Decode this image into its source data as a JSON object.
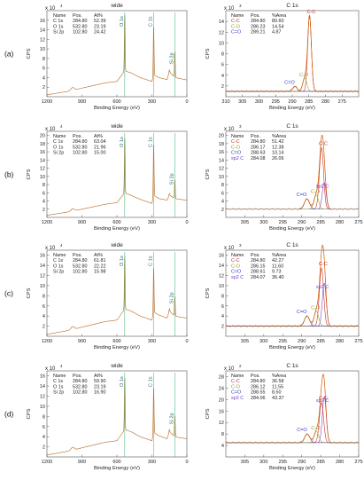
{
  "chart_data": [
    {
      "type": "table",
      "row_label": "(a)",
      "survey": {
        "title": "wide",
        "xlabel": "Binding Energy (eV)",
        "ylabel": "CPS",
        "y_multiplier": "x 10",
        "y_exponent": "4",
        "xlim": [
          1200,
          0
        ],
        "ylim": [
          0,
          18
        ],
        "x_ticks": [
          "1200",
          "900",
          "600",
          "300",
          "0"
        ],
        "y_ticks": [
          "2",
          "4",
          "6",
          "8",
          "10",
          "12",
          "14",
          "16"
        ],
        "table": {
          "headers": [
            "Name",
            "Pos.",
            "At%"
          ],
          "rows": [
            [
              "C 1s",
              "284.80",
              "52.39"
            ],
            [
              "O 1s",
              "532.80",
              "23.19"
            ],
            [
              "Si 2p",
              "102.80",
              "24.42"
            ]
          ]
        },
        "peaks": [
          {
            "label": "O 1s",
            "x": 532.8,
            "y": 17.6
          },
          {
            "label": "C 1s",
            "x": 284.8,
            "y": 15.0
          },
          {
            "label": "Si 2p",
            "x": 102.8,
            "y": 9.6
          }
        ],
        "background": [
          [
            1200,
            0.4
          ],
          [
            1000,
            1.2
          ],
          [
            900,
            1.8
          ],
          [
            700,
            2.9
          ],
          [
            600,
            3.2
          ],
          [
            533,
            5.4
          ],
          [
            480,
            5.0
          ],
          [
            400,
            4.0
          ],
          [
            300,
            3.2
          ],
          [
            285,
            4.6
          ],
          [
            240,
            4.0
          ],
          [
            170,
            3.6
          ],
          [
            150,
            5.2
          ],
          [
            103,
            4.0
          ],
          [
            60,
            3.8
          ],
          [
            0,
            3.5
          ]
        ]
      },
      "c1s": {
        "title": "C 1s",
        "xlabel": "Binding Energy (eV)",
        "ylabel": "CPS",
        "y_multiplier": "x 10",
        "y_exponent": "3",
        "xlim": [
          310,
          270
        ],
        "ylim": [
          0,
          16
        ],
        "x_ticks": [
          "310",
          "305",
          "300",
          "295",
          "290",
          "285",
          "280",
          "275"
        ],
        "y_ticks": [
          "2",
          "4",
          "6",
          "8",
          "10",
          "12",
          "14"
        ],
        "table": {
          "headers": [
            "Name",
            "Pos.",
            "%Area"
          ],
          "rows": [
            [
              "C-C",
              "284.80",
              "80.60"
            ],
            [
              "C-O",
              "286.23",
              "14.54"
            ],
            [
              "C=O",
              "289.21",
              "4.87"
            ]
          ]
        },
        "baseline": 1.0,
        "components": [
          {
            "name": "C-C",
            "center": 284.8,
            "height": 14.0,
            "fwhm": 1.3,
            "color": "#cc3333"
          },
          {
            "name": "C-O",
            "center": 286.23,
            "height": 2.5,
            "fwhm": 1.4,
            "color": "#aaaa22"
          },
          {
            "name": "C=O",
            "center": 289.21,
            "height": 0.9,
            "fwhm": 1.6,
            "color": "#4444cc"
          }
        ],
        "annotations": [
          "C-C",
          "C-O",
          "C=O"
        ]
      }
    },
    {
      "type": "table",
      "row_label": "(b)",
      "survey": {
        "title": "wide",
        "xlabel": "Binding Energy (eV)",
        "ylabel": "CPS",
        "y_multiplier": "x 10",
        "y_exponent": "4",
        "xlim": [
          1200,
          0
        ],
        "ylim": [
          0,
          21
        ],
        "x_ticks": [
          "1200",
          "900",
          "600",
          "300",
          "0"
        ],
        "y_ticks": [
          "2",
          "4",
          "6",
          "8",
          "10",
          "12",
          "14",
          "16",
          "18",
          "20"
        ],
        "table": {
          "headers": [
            "Name",
            "Pos.",
            "At%"
          ],
          "rows": [
            [
              "C 1s",
              "284.80",
              "63.04"
            ],
            [
              "O 1s",
              "532.80",
              "21.96"
            ],
            [
              "Si 2p",
              "102.80",
              "15.00"
            ]
          ]
        },
        "peaks": [
          {
            "label": "O 1s",
            "x": 532.8,
            "y": 19.8
          },
          {
            "label": "C 1s",
            "x": 284.8,
            "y": 18.2
          },
          {
            "label": "Si 2p",
            "x": 102.8,
            "y": 9.4
          }
        ],
        "background": [
          [
            1200,
            0.5
          ],
          [
            1000,
            1.4
          ],
          [
            900,
            2.0
          ],
          [
            700,
            3.2
          ],
          [
            600,
            3.6
          ],
          [
            533,
            6.0
          ],
          [
            480,
            5.4
          ],
          [
            400,
            4.4
          ],
          [
            300,
            3.4
          ],
          [
            285,
            5.4
          ],
          [
            240,
            4.6
          ],
          [
            170,
            4.2
          ],
          [
            150,
            5.4
          ],
          [
            103,
            4.6
          ],
          [
            60,
            4.4
          ],
          [
            0,
            4.2
          ]
        ]
      },
      "c1s": {
        "title": "C 1s",
        "xlabel": "Binding Energy (eV)",
        "ylabel": "CPS",
        "y_multiplier": "x 10",
        "y_exponent": "3",
        "xlim": [
          310,
          275
        ],
        "ylim": [
          0,
          21
        ],
        "x_ticks": [
          "305",
          "300",
          "295",
          "290",
          "285",
          "280",
          "275"
        ],
        "y_ticks": [
          "2",
          "4",
          "6",
          "8",
          "10",
          "12",
          "14",
          "16",
          "18",
          "20"
        ],
        "table": {
          "headers": [
            "Name",
            "Pos.",
            "%Area"
          ],
          "rows": [
            [
              "C-C",
              "284.80",
              "51.42"
            ],
            [
              "C-O",
              "286.17",
              "12.38"
            ],
            [
              "C=O",
              "288.63",
              "10.14"
            ],
            [
              "sp2 C",
              "284.08",
              "26.06"
            ]
          ]
        },
        "baseline": 2.0,
        "components": [
          {
            "name": "C-C",
            "center": 284.8,
            "height": 15.0,
            "fwhm": 1.3,
            "color": "#cc3333"
          },
          {
            "name": "sp2 C",
            "center": 284.08,
            "height": 6.5,
            "fwhm": 1.2,
            "color": "#8844cc"
          },
          {
            "name": "C-O",
            "center": 286.17,
            "height": 3.5,
            "fwhm": 1.4,
            "color": "#aaaa22"
          },
          {
            "name": "C=O",
            "center": 288.63,
            "height": 2.5,
            "fwhm": 1.6,
            "color": "#4444cc"
          }
        ],
        "annotations": [
          "C-C",
          "C-O",
          "C=O",
          "sp2 C"
        ]
      }
    },
    {
      "type": "table",
      "row_label": "(c)",
      "survey": {
        "title": "wide",
        "xlabel": "Binding Energy (eV)",
        "ylabel": "CPS",
        "y_multiplier": "x 10",
        "y_exponent": "4",
        "xlim": [
          1200,
          0
        ],
        "ylim": [
          0,
          17
        ],
        "x_ticks": [
          "1200",
          "900",
          "600",
          "300",
          "0"
        ],
        "y_ticks": [
          "2",
          "4",
          "6",
          "8",
          "10",
          "12",
          "14",
          "16"
        ],
        "table": {
          "headers": [
            "Name",
            "Pos.",
            "At%"
          ],
          "rows": [
            [
              "C 1s",
              "284.80",
              "61.81"
            ],
            [
              "O 1s",
              "532.80",
              "22.22"
            ],
            [
              "Si 2p",
              "102.80",
              "15.98"
            ]
          ]
        },
        "peaks": [
          {
            "label": "O 1s",
            "x": 532.8,
            "y": 16.2
          },
          {
            "label": "C 1s",
            "x": 284.8,
            "y": 13.8
          },
          {
            "label": "Si 2p",
            "x": 102.8,
            "y": 8.0
          }
        ],
        "background": [
          [
            1200,
            0.4
          ],
          [
            1000,
            1.2
          ],
          [
            900,
            1.8
          ],
          [
            700,
            2.9
          ],
          [
            600,
            3.2
          ],
          [
            533,
            5.4
          ],
          [
            480,
            5.0
          ],
          [
            400,
            4.0
          ],
          [
            300,
            3.2
          ],
          [
            285,
            4.8
          ],
          [
            240,
            4.2
          ],
          [
            170,
            3.6
          ],
          [
            150,
            5.0
          ],
          [
            103,
            4.0
          ],
          [
            60,
            3.8
          ],
          [
            0,
            3.6
          ]
        ]
      },
      "c1s": {
        "title": "C 1s",
        "xlabel": "Binding Energy (eV)",
        "ylabel": "CPS",
        "y_multiplier": "x 10",
        "y_exponent": "3",
        "xlim": [
          310,
          275
        ],
        "ylim": [
          0,
          17
        ],
        "x_ticks": [
          "305",
          "300",
          "295",
          "290",
          "285",
          "280",
          "275"
        ],
        "y_ticks": [
          "2",
          "4",
          "6",
          "8",
          "10",
          "12",
          "14",
          "16"
        ],
        "table": {
          "headers": [
            "Name",
            "Pos.",
            "%Area"
          ],
          "rows": [
            [
              "C-C",
              "284.80",
              "42.27"
            ],
            [
              "C-O",
              "286.15",
              "11.60"
            ],
            [
              "C=O",
              "288.61",
              "9.73"
            ],
            [
              "sp2 C",
              "284.07",
              "36.40"
            ]
          ]
        },
        "baseline": 2.0,
        "components": [
          {
            "name": "C-C",
            "center": 284.8,
            "height": 11.5,
            "fwhm": 1.3,
            "color": "#cc3333"
          },
          {
            "name": "sp2 C",
            "center": 284.07,
            "height": 8.5,
            "fwhm": 1.2,
            "color": "#8844cc"
          },
          {
            "name": "C-O",
            "center": 286.15,
            "height": 3.0,
            "fwhm": 1.4,
            "color": "#aaaa22"
          },
          {
            "name": "C=O",
            "center": 288.61,
            "height": 2.0,
            "fwhm": 1.6,
            "color": "#4444cc"
          }
        ],
        "annotations": [
          "C-C",
          "C-O",
          "C=O",
          "sp2 C"
        ]
      }
    },
    {
      "type": "table",
      "row_label": "(d)",
      "survey": {
        "title": "wide",
        "xlabel": "Binding Energy (eV)",
        "ylabel": "CPS",
        "y_multiplier": "x 10",
        "y_exponent": "4",
        "xlim": [
          1200,
          0
        ],
        "ylim": [
          0,
          17
        ],
        "x_ticks": [
          "1200",
          "900",
          "600",
          "300",
          "0"
        ],
        "y_ticks": [
          "2",
          "4",
          "6",
          "8",
          "10",
          "12",
          "14",
          "16"
        ],
        "table": {
          "headers": [
            "Name",
            "Pos.",
            "At%"
          ],
          "rows": [
            [
              "C 1s",
              "284.80",
              "59.90"
            ],
            [
              "O 1s",
              "532.80",
              "23.19"
            ],
            [
              "Si 2p",
              "102.80",
              "16.90"
            ]
          ]
        },
        "peaks": [
          {
            "label": "O 1s",
            "x": 532.8,
            "y": 16.0
          },
          {
            "label": "C 1s",
            "x": 284.8,
            "y": 14.0
          },
          {
            "label": "Si 2p",
            "x": 102.8,
            "y": 8.2
          }
        ],
        "background": [
          [
            1200,
            0.4
          ],
          [
            1000,
            1.2
          ],
          [
            900,
            1.8
          ],
          [
            700,
            2.9
          ],
          [
            600,
            3.2
          ],
          [
            533,
            5.4
          ],
          [
            480,
            5.0
          ],
          [
            400,
            4.0
          ],
          [
            300,
            3.2
          ],
          [
            285,
            4.8
          ],
          [
            240,
            4.2
          ],
          [
            170,
            3.6
          ],
          [
            150,
            5.0
          ],
          [
            103,
            4.0
          ],
          [
            60,
            3.8
          ],
          [
            0,
            3.6
          ]
        ]
      },
      "c1s": {
        "title": "C 1s",
        "xlabel": "Binding Energy (eV)",
        "ylabel": "CPS",
        "y_multiplier": "x 10",
        "y_exponent": "2",
        "xlim": [
          310,
          275
        ],
        "ylim": [
          0,
          30
        ],
        "x_ticks": [
          "305",
          "300",
          "295",
          "290",
          "285",
          "280",
          "275"
        ],
        "y_ticks": [
          "4",
          "8",
          "12",
          "16",
          "20",
          "24",
          "28"
        ],
        "table": {
          "headers": [
            "Name",
            "Pos.",
            "%Area"
          ],
          "rows": [
            [
              "C-C",
              "284.80",
              "36.58"
            ],
            [
              "C-O",
              "286.12",
              "11.55"
            ],
            [
              "C=O",
              "288.55",
              "8.50"
            ],
            [
              "sp2 C",
              "284.06",
              "43.37"
            ]
          ]
        },
        "baseline": 5.0,
        "components": [
          {
            "name": "sp2 C",
            "center": 284.06,
            "height": 16.0,
            "fwhm": 1.2,
            "color": "#8844cc"
          },
          {
            "name": "C-C",
            "center": 284.8,
            "height": 14.0,
            "fwhm": 1.3,
            "color": "#cc3333"
          },
          {
            "name": "C-O",
            "center": 286.12,
            "height": 4.0,
            "fwhm": 1.4,
            "color": "#aaaa22"
          },
          {
            "name": "C=O",
            "center": 288.55,
            "height": 3.0,
            "fwhm": 1.6,
            "color": "#4444cc"
          }
        ],
        "annotations": [
          "C-C",
          "C-O",
          "C=O",
          "sp2 C"
        ]
      }
    }
  ]
}
